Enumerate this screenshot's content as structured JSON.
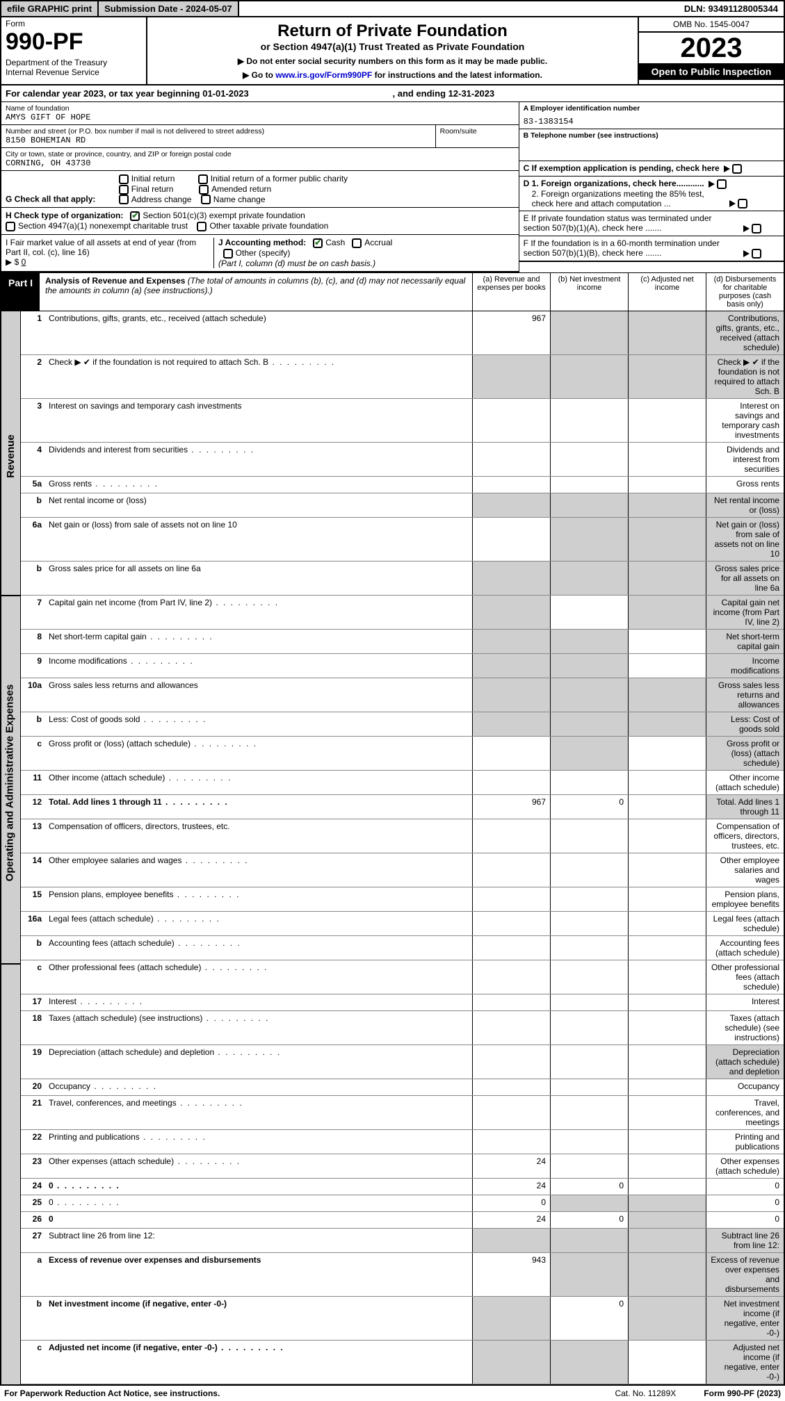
{
  "topbar": {
    "efile": "efile GRAPHIC print",
    "subdate": "Submission Date - 2024-05-07",
    "dln": "DLN: 93491128005344"
  },
  "header": {
    "form_lbl": "Form",
    "form_no": "990-PF",
    "dept": "Department of the Treasury",
    "irs": "Internal Revenue Service",
    "title": "Return of Private Foundation",
    "subtitle": "or Section 4947(a)(1) Trust Treated as Private Foundation",
    "instr1": "▶ Do not enter social security numbers on this form as it may be made public.",
    "instr2_pre": "▶ Go to ",
    "instr2_link": "www.irs.gov/Form990PF",
    "instr2_post": " for instructions and the latest information.",
    "omb": "OMB No. 1545-0047",
    "year": "2023",
    "otp": "Open to Public Inspection"
  },
  "cal": {
    "beg": "For calendar year 2023, or tax year beginning 01-01-2023",
    "end": ", and ending 12-31-2023"
  },
  "info": {
    "name_lbl": "Name of foundation",
    "name": "AMYS GIFT OF HOPE",
    "addr_lbl": "Number and street (or P.O. box number if mail is not delivered to street address)",
    "addr": "8150 BOHEMIAN RD",
    "room_lbl": "Room/suite",
    "room": "",
    "city_lbl": "City or town, state or province, country, and ZIP or foreign postal code",
    "city": "CORNING, OH  43730",
    "A_lbl": "A Employer identification number",
    "A_val": "83-1383154",
    "B_lbl": "B Telephone number (see instructions)",
    "B_val": "",
    "C_lbl": "C If exemption application is pending, check here",
    "D1": "D 1. Foreign organizations, check here............",
    "D2": "2. Foreign organizations meeting the 85% test, check here and attach computation ...",
    "E": "E  If private foundation status was terminated under section 507(b)(1)(A), check here .......",
    "F": "F  If the foundation is in a 60-month termination under section 507(b)(1)(B), check here .......",
    "G": "G Check all that apply:",
    "G_opts": [
      "Initial return",
      "Final return",
      "Address change",
      "Initial return of a former public charity",
      "Amended return",
      "Name change"
    ],
    "H": "H Check type of organization:",
    "H1": "Section 501(c)(3) exempt private foundation",
    "H2": "Section 4947(a)(1) nonexempt charitable trust",
    "H3": "Other taxable private foundation",
    "I": "I Fair market value of all assets at end of year (from Part II, col. (c), line 16)",
    "I_val": "0",
    "I_pre": "▶ $",
    "J": "J Accounting method:",
    "J1": "Cash",
    "J2": "Accrual",
    "J3": "Other (specify)",
    "J_note": "(Part I, column (d) must be on cash basis.)"
  },
  "part1": {
    "label": "Part I",
    "title": "Analysis of Revenue and Expenses",
    "note": "(The total of amounts in columns (b), (c), and (d) may not necessarily equal the amounts in column (a) (see instructions).)",
    "col_a": "(a)  Revenue and expenses per books",
    "col_b": "(b)  Net investment income",
    "col_c": "(c)  Adjusted net income",
    "col_d": "(d)  Disbursements for charitable purposes (cash basis only)"
  },
  "sections": {
    "rev": "Revenue",
    "exp": "Operating and Administrative Expenses"
  },
  "rows": [
    {
      "n": "1",
      "d": "Contributions, gifts, grants, etc., received (attach schedule)",
      "a": "967",
      "shade": [
        "b",
        "c",
        "d"
      ]
    },
    {
      "n": "2",
      "d": "Check ▶ ✔ if the foundation is not required to attach Sch. B",
      "dots": true,
      "noval": true,
      "shade": [
        "a",
        "b",
        "c",
        "d"
      ]
    },
    {
      "n": "3",
      "d": "Interest on savings and temporary cash investments"
    },
    {
      "n": "4",
      "d": "Dividends and interest from securities",
      "dots": true
    },
    {
      "n": "5a",
      "d": "Gross rents",
      "dots": true
    },
    {
      "n": "b",
      "d": "Net rental income or (loss)",
      "noval": true,
      "shade": [
        "a",
        "b",
        "c",
        "d"
      ]
    },
    {
      "n": "6a",
      "d": "Net gain or (loss) from sale of assets not on line 10",
      "shade": [
        "b",
        "c",
        "d"
      ]
    },
    {
      "n": "b",
      "d": "Gross sales price for all assets on line 6a",
      "noval": true,
      "shade": [
        "a",
        "b",
        "c",
        "d"
      ]
    },
    {
      "n": "7",
      "d": "Capital gain net income (from Part IV, line 2)",
      "dots": true,
      "shade": [
        "a",
        "c",
        "d"
      ]
    },
    {
      "n": "8",
      "d": "Net short-term capital gain",
      "dots": true,
      "shade": [
        "a",
        "b",
        "d"
      ]
    },
    {
      "n": "9",
      "d": "Income modifications",
      "dots": true,
      "shade": [
        "a",
        "b",
        "d"
      ]
    },
    {
      "n": "10a",
      "d": "Gross sales less returns and allowances",
      "noval": true,
      "shade": [
        "a",
        "b",
        "c",
        "d"
      ]
    },
    {
      "n": "b",
      "d": "Less: Cost of goods sold",
      "dots": true,
      "noval": true,
      "shade": [
        "a",
        "b",
        "c",
        "d"
      ]
    },
    {
      "n": "c",
      "d": "Gross profit or (loss) (attach schedule)",
      "dots": true,
      "shade": [
        "b",
        "d"
      ]
    },
    {
      "n": "11",
      "d": "Other income (attach schedule)",
      "dots": true
    },
    {
      "n": "12",
      "d": "Total. Add lines 1 through 11",
      "dots": true,
      "bold": true,
      "a": "967",
      "b": "0",
      "shade": [
        "d"
      ]
    }
  ],
  "rows2": [
    {
      "n": "13",
      "d": "Compensation of officers, directors, trustees, etc."
    },
    {
      "n": "14",
      "d": "Other employee salaries and wages",
      "dots": true
    },
    {
      "n": "15",
      "d": "Pension plans, employee benefits",
      "dots": true
    },
    {
      "n": "16a",
      "d": "Legal fees (attach schedule)",
      "dots": true
    },
    {
      "n": "b",
      "d": "Accounting fees (attach schedule)",
      "dots": true
    },
    {
      "n": "c",
      "d": "Other professional fees (attach schedule)",
      "dots": true
    },
    {
      "n": "17",
      "d": "Interest",
      "dots": true
    },
    {
      "n": "18",
      "d": "Taxes (attach schedule) (see instructions)",
      "dots": true
    },
    {
      "n": "19",
      "d": "Depreciation (attach schedule) and depletion",
      "dots": true,
      "shade": [
        "d"
      ]
    },
    {
      "n": "20",
      "d": "Occupancy",
      "dots": true
    },
    {
      "n": "21",
      "d": "Travel, conferences, and meetings",
      "dots": true
    },
    {
      "n": "22",
      "d": "Printing and publications",
      "dots": true
    },
    {
      "n": "23",
      "d": "Other expenses (attach schedule)",
      "dots": true,
      "a": "24"
    },
    {
      "n": "24",
      "d": "0",
      "dots": true,
      "bold": true,
      "a": "24",
      "b": "0"
    },
    {
      "n": "25",
      "d": "0",
      "dots": true,
      "a": "0",
      "shade": [
        "b",
        "c"
      ]
    },
    {
      "n": "26",
      "d": "0",
      "bold": true,
      "a": "24",
      "b": "0",
      "shade": [
        "c"
      ]
    },
    {
      "n": "27",
      "d": "Subtract line 26 from line 12:",
      "shade": [
        "a",
        "b",
        "c",
        "d"
      ]
    },
    {
      "n": "a",
      "d": "Excess of revenue over expenses and disbursements",
      "bold": true,
      "a": "943",
      "shade": [
        "b",
        "c",
        "d"
      ]
    },
    {
      "n": "b",
      "d": "Net investment income (if negative, enter -0-)",
      "bold": true,
      "b": "0",
      "shade": [
        "a",
        "c",
        "d"
      ]
    },
    {
      "n": "c",
      "d": "Adjusted net income (if negative, enter -0-)",
      "bold": true,
      "dots": true,
      "shade": [
        "a",
        "b",
        "d"
      ]
    }
  ],
  "footer": {
    "l": "For Paperwork Reduction Act Notice, see instructions.",
    "c": "Cat. No. 11289X",
    "r": "Form 990-PF (2023)"
  },
  "colors": {
    "shade": "#cfcfcf",
    "checkgreen": "#2a7a2a",
    "link": "#0000cc"
  }
}
